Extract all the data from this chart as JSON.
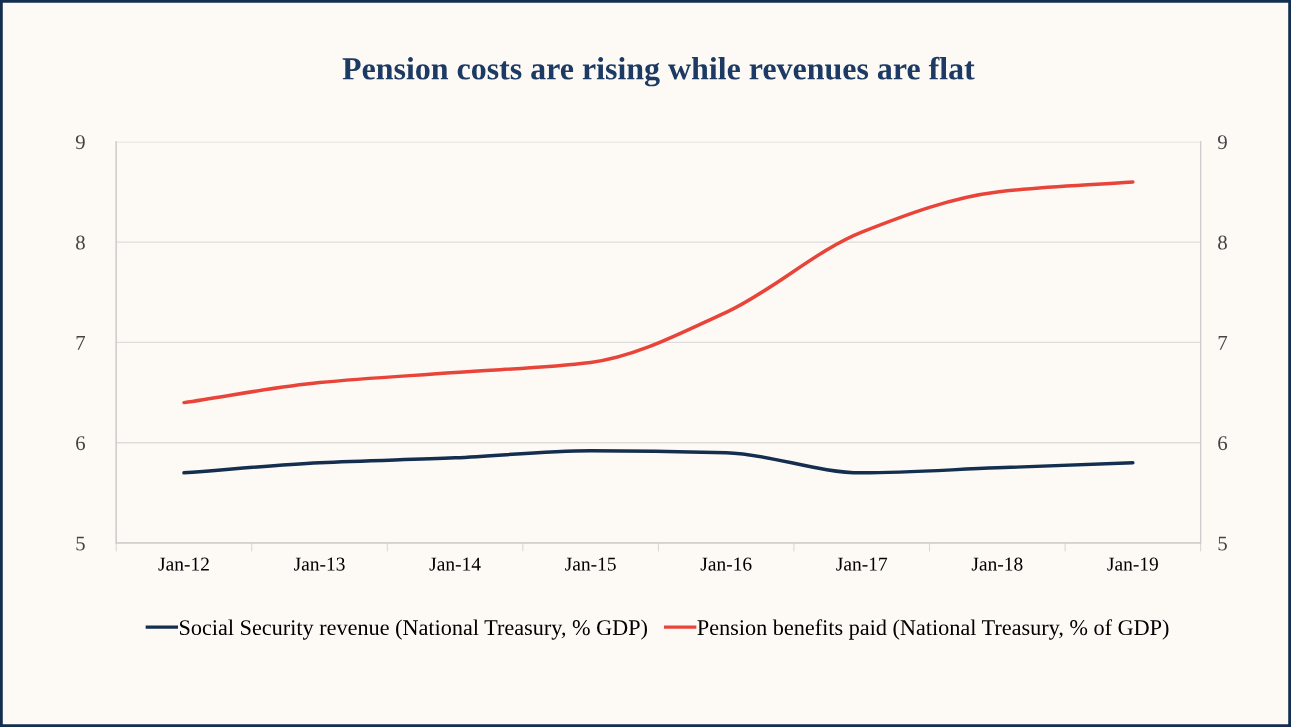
{
  "chart_data": {
    "type": "line",
    "title": "Pension costs are rising while revenues are flat",
    "categories": [
      "Jan-12",
      "Jan-13",
      "Jan-14",
      "Jan-15",
      "Jan-16",
      "Jan-17",
      "Jan-18",
      "Jan-19"
    ],
    "series": [
      {
        "name": "Social Security revenue (National Treasury, % GDP)",
        "color": "#132e4f",
        "values": [
          5.7,
          5.8,
          5.85,
          5.92,
          5.9,
          5.7,
          5.75,
          5.8
        ]
      },
      {
        "name": "Pension benefits paid (National Treasury, % of GDP)",
        "color": "#e8443a",
        "values": [
          6.4,
          6.6,
          6.7,
          6.8,
          7.3,
          8.1,
          8.5,
          8.6
        ]
      }
    ],
    "ylim": [
      5,
      9
    ],
    "yticks": [
      5,
      6,
      7,
      8,
      9
    ],
    "y2lim": [
      5,
      9
    ],
    "y2ticks": [
      5,
      6,
      7,
      8,
      9
    ],
    "grid": "y",
    "legend": "bottom",
    "marker": "none",
    "line_style": "solid"
  }
}
